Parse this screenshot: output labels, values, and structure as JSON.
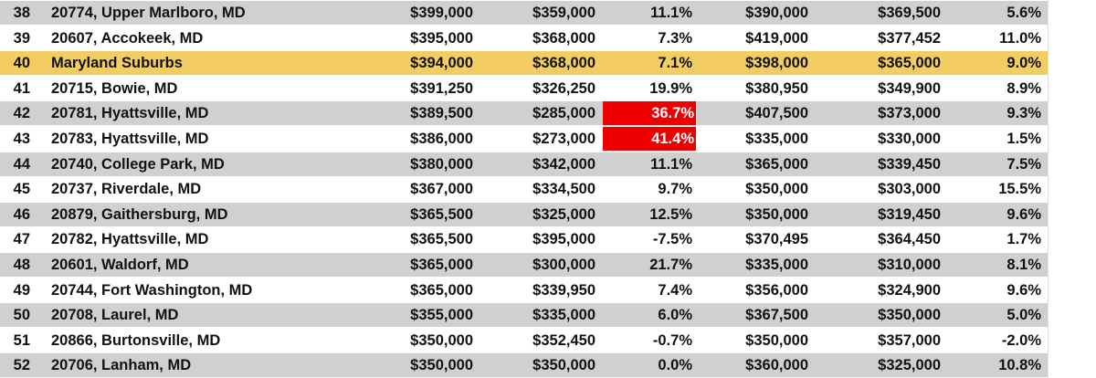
{
  "rows": [
    {
      "n": "38",
      "name": "20774, Upper Marlboro, MD",
      "c3": "$399,000",
      "c4": "$359,000",
      "c5": "11.1%",
      "c6": "$390,000",
      "c7": "$369,500",
      "c8": "5.6%",
      "style": "shade",
      "hot": false
    },
    {
      "n": "39",
      "name": "20607, Accokeek, MD",
      "c3": "$395,000",
      "c4": "$368,000",
      "c5": "7.3%",
      "c6": "$419,000",
      "c7": "$377,452",
      "c8": "11.0%",
      "style": "plain",
      "hot": false
    },
    {
      "n": "40",
      "name": "Maryland Suburbs",
      "c3": "$394,000",
      "c4": "$368,000",
      "c5": "7.1%",
      "c6": "$398,000",
      "c7": "$365,000",
      "c8": "9.0%",
      "style": "highlight",
      "hot": false
    },
    {
      "n": "41",
      "name": "20715, Bowie, MD",
      "c3": "$391,250",
      "c4": "$326,250",
      "c5": "19.9%",
      "c6": "$380,950",
      "c7": "$349,900",
      "c8": "8.9%",
      "style": "plain",
      "hot": false
    },
    {
      "n": "42",
      "name": "20781, Hyattsville, MD",
      "c3": "$389,500",
      "c4": "$285,000",
      "c5": "36.7%",
      "c6": "$407,500",
      "c7": "$373,000",
      "c8": "9.3%",
      "style": "shade",
      "hot": true
    },
    {
      "n": "43",
      "name": "20783, Hyattsville, MD",
      "c3": "$386,000",
      "c4": "$273,000",
      "c5": "41.4%",
      "c6": "$335,000",
      "c7": "$330,000",
      "c8": "1.5%",
      "style": "plain",
      "hot": true
    },
    {
      "n": "44",
      "name": "20740, College Park, MD",
      "c3": "$380,000",
      "c4": "$342,000",
      "c5": "11.1%",
      "c6": "$365,000",
      "c7": "$339,450",
      "c8": "7.5%",
      "style": "shade",
      "hot": false
    },
    {
      "n": "45",
      "name": "20737, Riverdale, MD",
      "c3": "$367,000",
      "c4": "$334,500",
      "c5": "9.7%",
      "c6": "$350,000",
      "c7": "$303,000",
      "c8": "15.5%",
      "style": "plain",
      "hot": false
    },
    {
      "n": "46",
      "name": "20879, Gaithersburg, MD",
      "c3": "$365,500",
      "c4": "$325,000",
      "c5": "12.5%",
      "c6": "$350,000",
      "c7": "$319,450",
      "c8": "9.6%",
      "style": "shade",
      "hot": false
    },
    {
      "n": "47",
      "name": "20782, Hyattsville, MD",
      "c3": "$365,500",
      "c4": "$395,000",
      "c5": "-7.5%",
      "c6": "$370,495",
      "c7": "$364,450",
      "c8": "1.7%",
      "style": "plain",
      "hot": false
    },
    {
      "n": "48",
      "name": "20601, Waldorf, MD",
      "c3": "$365,000",
      "c4": "$300,000",
      "c5": "21.7%",
      "c6": "$335,000",
      "c7": "$310,000",
      "c8": "8.1%",
      "style": "shade",
      "hot": false
    },
    {
      "n": "49",
      "name": "20744, Fort Washington, MD",
      "c3": "$365,000",
      "c4": "$339,950",
      "c5": "7.4%",
      "c6": "$356,000",
      "c7": "$324,900",
      "c8": "9.6%",
      "style": "plain",
      "hot": false
    },
    {
      "n": "50",
      "name": "20708, Laurel, MD",
      "c3": "$355,000",
      "c4": "$335,000",
      "c5": "6.0%",
      "c6": "$367,500",
      "c7": "$350,000",
      "c8": "5.0%",
      "style": "shade",
      "hot": false
    },
    {
      "n": "51",
      "name": "20866, Burtonsville, MD",
      "c3": "$350,000",
      "c4": "$352,450",
      "c5": "-0.7%",
      "c6": "$350,000",
      "c7": "$357,000",
      "c8": "-2.0%",
      "style": "plain",
      "hot": false
    },
    {
      "n": "52",
      "name": "20706, Lanham, MD",
      "c3": "$350,000",
      "c4": "$350,000",
      "c5": "0.0%",
      "c6": "$360,000",
      "c7": "$325,000",
      "c8": "10.8%",
      "style": "shade",
      "hot": false
    }
  ],
  "colors": {
    "shade": "#d0d0d0",
    "highlight": "#f4cd62",
    "hot": "#ee0000"
  }
}
